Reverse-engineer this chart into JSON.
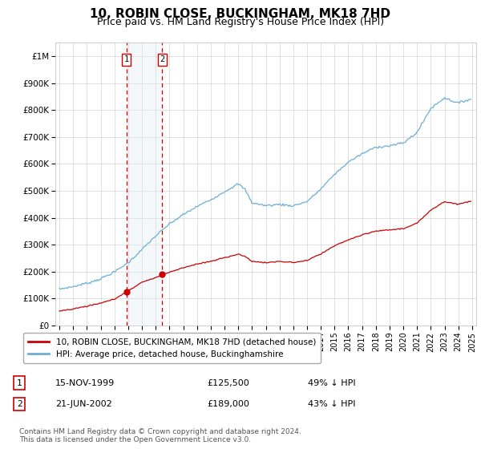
{
  "title": "10, ROBIN CLOSE, BUCKINGHAM, MK18 7HD",
  "subtitle": "Price paid vs. HM Land Registry's House Price Index (HPI)",
  "title_fontsize": 11,
  "subtitle_fontsize": 9,
  "ylim": [
    0,
    1050000
  ],
  "yticks": [
    0,
    100000,
    200000,
    300000,
    400000,
    500000,
    600000,
    700000,
    800000,
    900000,
    1000000
  ],
  "ytick_labels": [
    "£0",
    "£100K",
    "£200K",
    "£300K",
    "£400K",
    "£500K",
    "£600K",
    "£700K",
    "£800K",
    "£900K",
    "£1M"
  ],
  "hpi_color": "#6baed6",
  "price_color": "#cc0000",
  "marker_color": "#cc0000",
  "purchase1_date_num": 1999.87,
  "purchase1_price": 125500,
  "purchase1_label": "1",
  "purchase1_date_str": "15-NOV-1999",
  "purchase1_price_str": "£125,500",
  "purchase1_hpi_str": "49% ↓ HPI",
  "purchase2_date_num": 2002.47,
  "purchase2_price": 189000,
  "purchase2_label": "2",
  "purchase2_date_str": "21-JUN-2002",
  "purchase2_price_str": "£189,000",
  "purchase2_hpi_str": "43% ↓ HPI",
  "legend_line1": "10, ROBIN CLOSE, BUCKINGHAM, MK18 7HD (detached house)",
  "legend_line2": "HPI: Average price, detached house, Buckinghamshire",
  "footnote": "Contains HM Land Registry data © Crown copyright and database right 2024.\nThis data is licensed under the Open Government Licence v3.0.",
  "bg_color": "#ffffff",
  "grid_color": "#cccccc",
  "highlight_color": "#dce9f5",
  "vline_color": "#cc0000"
}
